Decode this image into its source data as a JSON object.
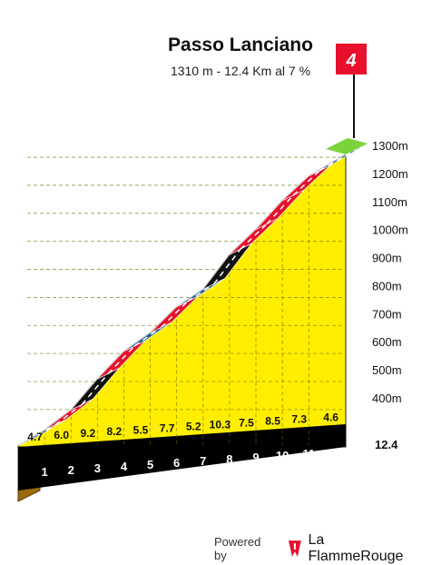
{
  "header": {
    "title": "Passo Lanciano",
    "subtitle": "1310 m - 12.4 Km al 7 %"
  },
  "badge": {
    "number": "4",
    "color": "#e8102c"
  },
  "footer": {
    "powered_by": "Powered by",
    "brand": "La FlammeRouge",
    "brand_color": "#e8102c"
  },
  "chart_data": {
    "type": "area",
    "title": "Passo Lanciano",
    "subtitle": "1310 m - 12.4 Km al 7 %",
    "x_unit": "km",
    "y_unit": "m",
    "ylim": [
      270,
      1310
    ],
    "xlim": [
      0,
      12.4
    ],
    "y_ticks": [
      400,
      500,
      600,
      700,
      800,
      900,
      1000,
      1100,
      1200,
      1300
    ],
    "y_tick_labels": [
      "400m",
      "500m",
      "600m",
      "700m",
      "800m",
      "900m",
      "1000m",
      "1100m",
      "1200m",
      "1300m"
    ],
    "x_ticks": [
      1,
      2,
      3,
      4,
      5,
      6,
      7,
      8,
      9,
      10,
      11
    ],
    "x_tick_labels": [
      "1",
      "2",
      "3",
      "4",
      "5",
      "6",
      "7",
      "8",
      "9",
      "10",
      "11"
    ],
    "end_label": "12.4",
    "grid": true,
    "segments": [
      {
        "km_start": 0,
        "km_end": 1,
        "gradient": 4.7,
        "label": "4.7"
      },
      {
        "km_start": 1,
        "km_end": 2,
        "gradient": 6.0,
        "label": "6.0"
      },
      {
        "km_start": 2,
        "km_end": 3,
        "gradient": 9.2,
        "label": "9.2"
      },
      {
        "km_start": 3,
        "km_end": 4,
        "gradient": 8.2,
        "label": "8.2"
      },
      {
        "km_start": 4,
        "km_end": 5,
        "gradient": 5.5,
        "label": "5.5"
      },
      {
        "km_start": 5,
        "km_end": 6,
        "gradient": 7.7,
        "label": "7.7"
      },
      {
        "km_start": 6,
        "km_end": 7,
        "gradient": 5.2,
        "label": "5.2"
      },
      {
        "km_start": 7,
        "km_end": 8,
        "gradient": 10.3,
        "label": "10.3"
      },
      {
        "km_start": 8,
        "km_end": 9,
        "gradient": 7.5,
        "label": "7.5"
      },
      {
        "km_start": 9,
        "km_end": 10,
        "gradient": 8.5,
        "label": "8.5"
      },
      {
        "km_start": 10,
        "km_end": 11,
        "gradient": 7.3,
        "label": "7.3"
      },
      {
        "km_start": 11,
        "km_end": 12.4,
        "gradient": 4.6,
        "label": "4.6"
      }
    ],
    "gradient_colors": {
      "easy": "#1f5f8f",
      "moderate": "#e8102c",
      "steep": "#111111",
      "summit": "#7bd33a"
    }
  }
}
